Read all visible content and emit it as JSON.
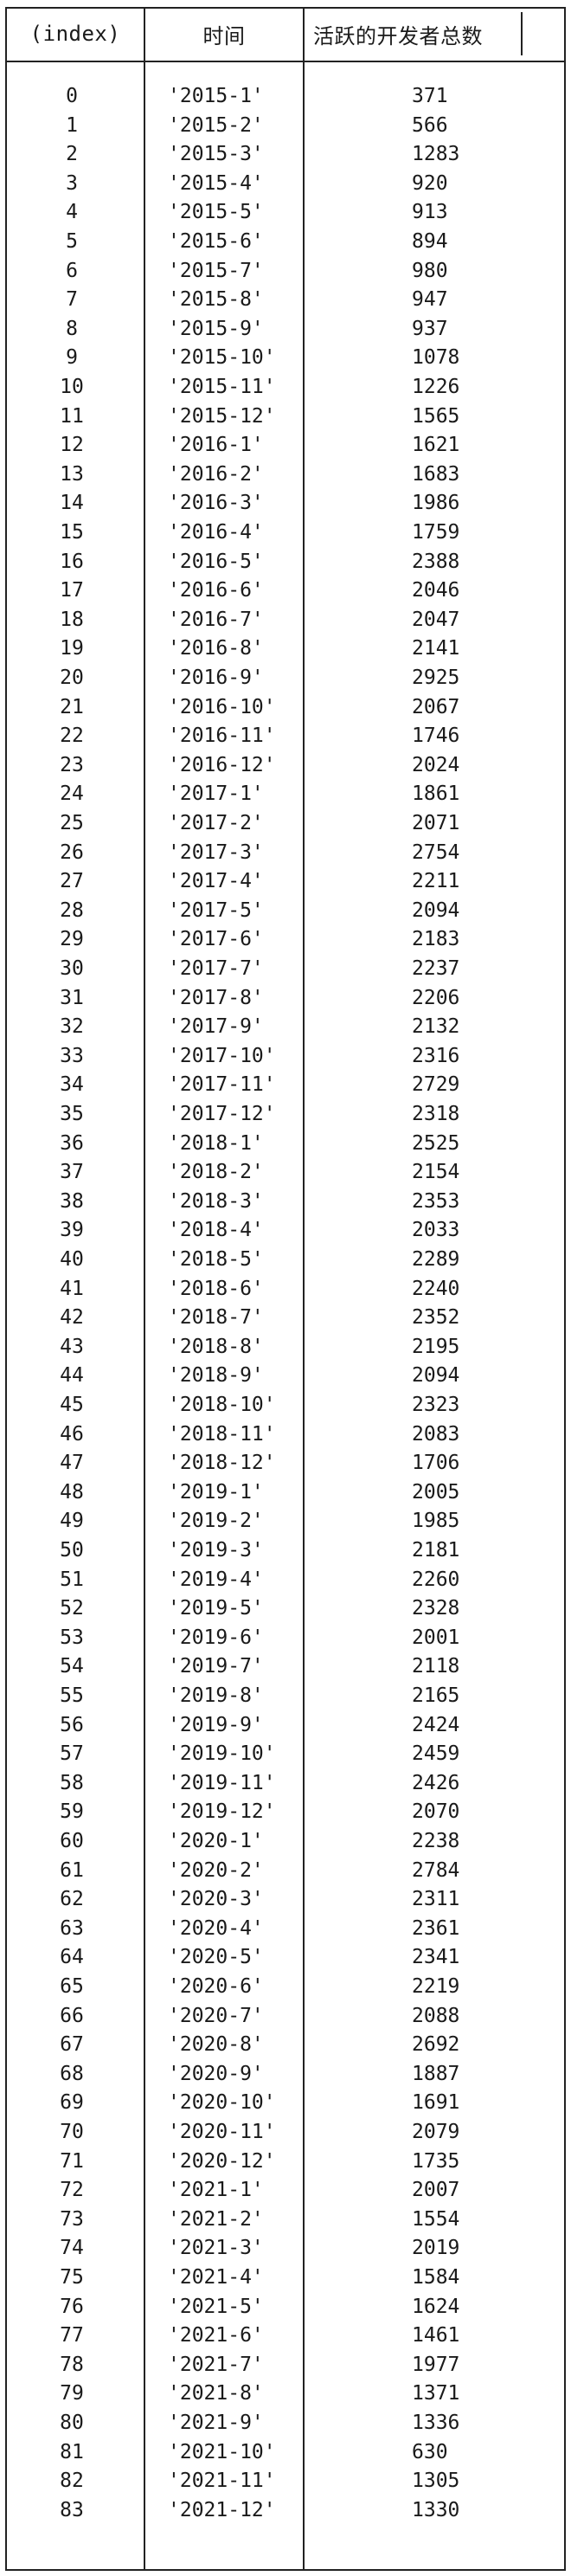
{
  "table": {
    "headers": {
      "index": "(index)",
      "time": "时间",
      "count": "活跃的开发者总数"
    },
    "rows": [
      {
        "index": "0",
        "time": "'2015-1'",
        "count": "371"
      },
      {
        "index": "1",
        "time": "'2015-2'",
        "count": "566"
      },
      {
        "index": "2",
        "time": "'2015-3'",
        "count": "1283"
      },
      {
        "index": "3",
        "time": "'2015-4'",
        "count": "920"
      },
      {
        "index": "4",
        "time": "'2015-5'",
        "count": "913"
      },
      {
        "index": "5",
        "time": "'2015-6'",
        "count": "894"
      },
      {
        "index": "6",
        "time": "'2015-7'",
        "count": "980"
      },
      {
        "index": "7",
        "time": "'2015-8'",
        "count": "947"
      },
      {
        "index": "8",
        "time": "'2015-9'",
        "count": "937"
      },
      {
        "index": "9",
        "time": "'2015-10'",
        "count": "1078"
      },
      {
        "index": "10",
        "time": "'2015-11'",
        "count": "1226"
      },
      {
        "index": "11",
        "time": "'2015-12'",
        "count": "1565"
      },
      {
        "index": "12",
        "time": "'2016-1'",
        "count": "1621"
      },
      {
        "index": "13",
        "time": "'2016-2'",
        "count": "1683"
      },
      {
        "index": "14",
        "time": "'2016-3'",
        "count": "1986"
      },
      {
        "index": "15",
        "time": "'2016-4'",
        "count": "1759"
      },
      {
        "index": "16",
        "time": "'2016-5'",
        "count": "2388"
      },
      {
        "index": "17",
        "time": "'2016-6'",
        "count": "2046"
      },
      {
        "index": "18",
        "time": "'2016-7'",
        "count": "2047"
      },
      {
        "index": "19",
        "time": "'2016-8'",
        "count": "2141"
      },
      {
        "index": "20",
        "time": "'2016-9'",
        "count": "2925"
      },
      {
        "index": "21",
        "time": "'2016-10'",
        "count": "2067"
      },
      {
        "index": "22",
        "time": "'2016-11'",
        "count": "1746"
      },
      {
        "index": "23",
        "time": "'2016-12'",
        "count": "2024"
      },
      {
        "index": "24",
        "time": "'2017-1'",
        "count": "1861"
      },
      {
        "index": "25",
        "time": "'2017-2'",
        "count": "2071"
      },
      {
        "index": "26",
        "time": "'2017-3'",
        "count": "2754"
      },
      {
        "index": "27",
        "time": "'2017-4'",
        "count": "2211"
      },
      {
        "index": "28",
        "time": "'2017-5'",
        "count": "2094"
      },
      {
        "index": "29",
        "time": "'2017-6'",
        "count": "2183"
      },
      {
        "index": "30",
        "time": "'2017-7'",
        "count": "2237"
      },
      {
        "index": "31",
        "time": "'2017-8'",
        "count": "2206"
      },
      {
        "index": "32",
        "time": "'2017-9'",
        "count": "2132"
      },
      {
        "index": "33",
        "time": "'2017-10'",
        "count": "2316"
      },
      {
        "index": "34",
        "time": "'2017-11'",
        "count": "2729"
      },
      {
        "index": "35",
        "time": "'2017-12'",
        "count": "2318"
      },
      {
        "index": "36",
        "time": "'2018-1'",
        "count": "2525"
      },
      {
        "index": "37",
        "time": "'2018-2'",
        "count": "2154"
      },
      {
        "index": "38",
        "time": "'2018-3'",
        "count": "2353"
      },
      {
        "index": "39",
        "time": "'2018-4'",
        "count": "2033"
      },
      {
        "index": "40",
        "time": "'2018-5'",
        "count": "2289"
      },
      {
        "index": "41",
        "time": "'2018-6'",
        "count": "2240"
      },
      {
        "index": "42",
        "time": "'2018-7'",
        "count": "2352"
      },
      {
        "index": "43",
        "time": "'2018-8'",
        "count": "2195"
      },
      {
        "index": "44",
        "time": "'2018-9'",
        "count": "2094"
      },
      {
        "index": "45",
        "time": "'2018-10'",
        "count": "2323"
      },
      {
        "index": "46",
        "time": "'2018-11'",
        "count": "2083"
      },
      {
        "index": "47",
        "time": "'2018-12'",
        "count": "1706"
      },
      {
        "index": "48",
        "time": "'2019-1'",
        "count": "2005"
      },
      {
        "index": "49",
        "time": "'2019-2'",
        "count": "1985"
      },
      {
        "index": "50",
        "time": "'2019-3'",
        "count": "2181"
      },
      {
        "index": "51",
        "time": "'2019-4'",
        "count": "2260"
      },
      {
        "index": "52",
        "time": "'2019-5'",
        "count": "2328"
      },
      {
        "index": "53",
        "time": "'2019-6'",
        "count": "2001"
      },
      {
        "index": "54",
        "time": "'2019-7'",
        "count": "2118"
      },
      {
        "index": "55",
        "time": "'2019-8'",
        "count": "2165"
      },
      {
        "index": "56",
        "time": "'2019-9'",
        "count": "2424"
      },
      {
        "index": "57",
        "time": "'2019-10'",
        "count": "2459"
      },
      {
        "index": "58",
        "time": "'2019-11'",
        "count": "2426"
      },
      {
        "index": "59",
        "time": "'2019-12'",
        "count": "2070"
      },
      {
        "index": "60",
        "time": "'2020-1'",
        "count": "2238"
      },
      {
        "index": "61",
        "time": "'2020-2'",
        "count": "2784"
      },
      {
        "index": "62",
        "time": "'2020-3'",
        "count": "2311"
      },
      {
        "index": "63",
        "time": "'2020-4'",
        "count": "2361"
      },
      {
        "index": "64",
        "time": "'2020-5'",
        "count": "2341"
      },
      {
        "index": "65",
        "time": "'2020-6'",
        "count": "2219"
      },
      {
        "index": "66",
        "time": "'2020-7'",
        "count": "2088"
      },
      {
        "index": "67",
        "time": "'2020-8'",
        "count": "2692"
      },
      {
        "index": "68",
        "time": "'2020-9'",
        "count": "1887"
      },
      {
        "index": "69",
        "time": "'2020-10'",
        "count": "1691"
      },
      {
        "index": "70",
        "time": "'2020-11'",
        "count": "2079"
      },
      {
        "index": "71",
        "time": "'2020-12'",
        "count": "1735"
      },
      {
        "index": "72",
        "time": "'2021-1'",
        "count": "2007"
      },
      {
        "index": "73",
        "time": "'2021-2'",
        "count": "1554"
      },
      {
        "index": "74",
        "time": "'2021-3'",
        "count": "2019"
      },
      {
        "index": "75",
        "time": "'2021-4'",
        "count": "1584"
      },
      {
        "index": "76",
        "time": "'2021-5'",
        "count": "1624"
      },
      {
        "index": "77",
        "time": "'2021-6'",
        "count": "1461"
      },
      {
        "index": "78",
        "time": "'2021-7'",
        "count": "1977"
      },
      {
        "index": "79",
        "time": "'2021-8'",
        "count": "1371"
      },
      {
        "index": "80",
        "time": "'2021-9'",
        "count": "1336"
      },
      {
        "index": "81",
        "time": "'2021-10'",
        "count": "630"
      },
      {
        "index": "82",
        "time": "'2021-11'",
        "count": "1305"
      },
      {
        "index": "83",
        "time": "'2021-12'",
        "count": "1330"
      }
    ]
  }
}
